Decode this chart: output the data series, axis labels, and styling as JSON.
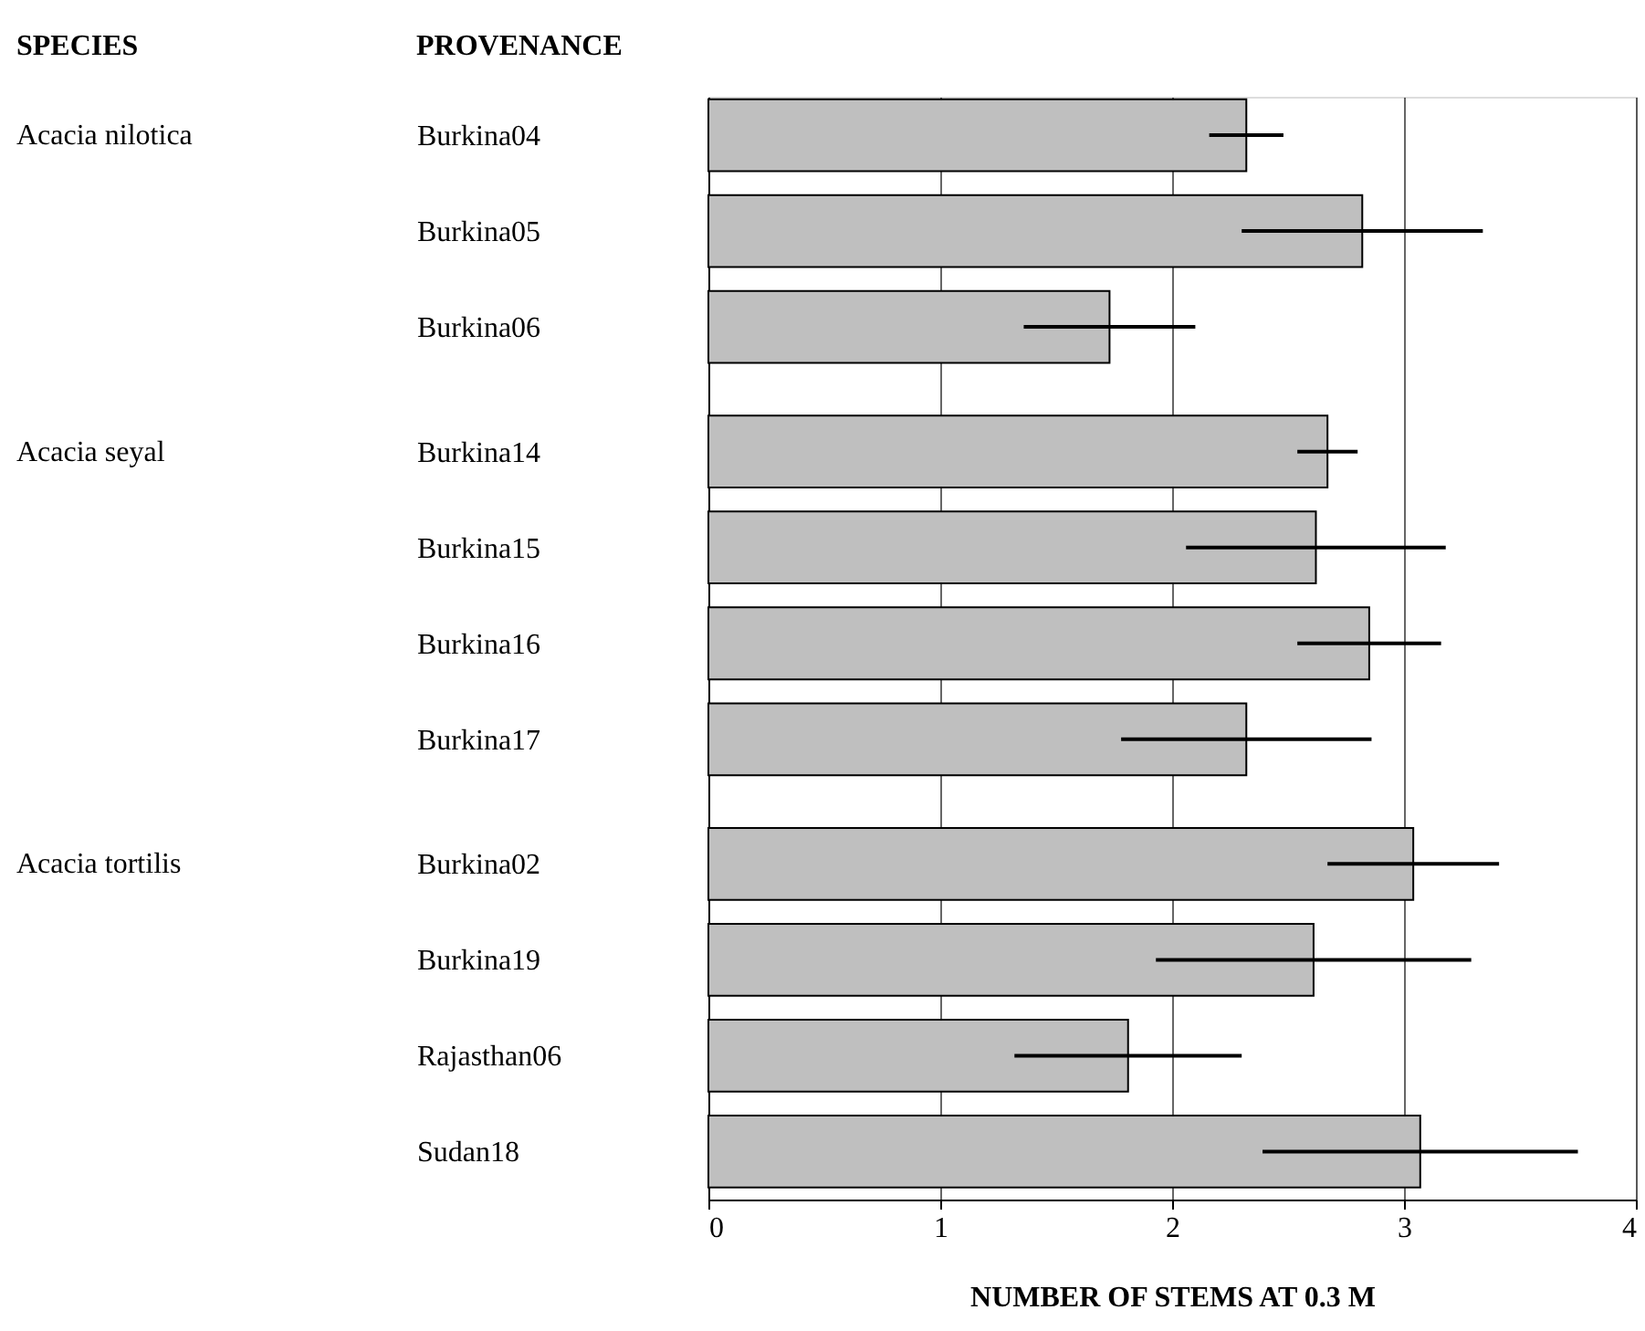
{
  "chart_data": {
    "type": "bar",
    "orientation": "horizontal",
    "xlabel": "NUMBER OF STEMS AT 0.3 M",
    "ylabel": "PROVENANCE",
    "categories": [
      "Burkina04",
      "Burkina05",
      "Burkina06",
      "Burkina14",
      "Burkina15",
      "Burkina16",
      "Burkina17",
      "Burkina02",
      "Burkina19",
      "Rajasthan06",
      "Sudan18"
    ],
    "values": [
      2.32,
      2.82,
      1.73,
      2.67,
      2.62,
      2.85,
      2.32,
      3.04,
      2.61,
      1.81,
      3.07
    ],
    "errors": [
      0.16,
      0.52,
      0.37,
      0.13,
      0.56,
      0.31,
      0.54,
      0.37,
      0.68,
      0.49,
      0.68
    ],
    "color": "#bfbfbf",
    "xlim": [
      0,
      4
    ],
    "xticks": [
      0,
      1,
      2,
      3,
      4
    ],
    "grid": "x",
    "legend": false,
    "annotations": [
      "SPECIES",
      "Acacia nilotica",
      "Acacia seyal",
      "Acacia tortilis"
    ]
  }
}
